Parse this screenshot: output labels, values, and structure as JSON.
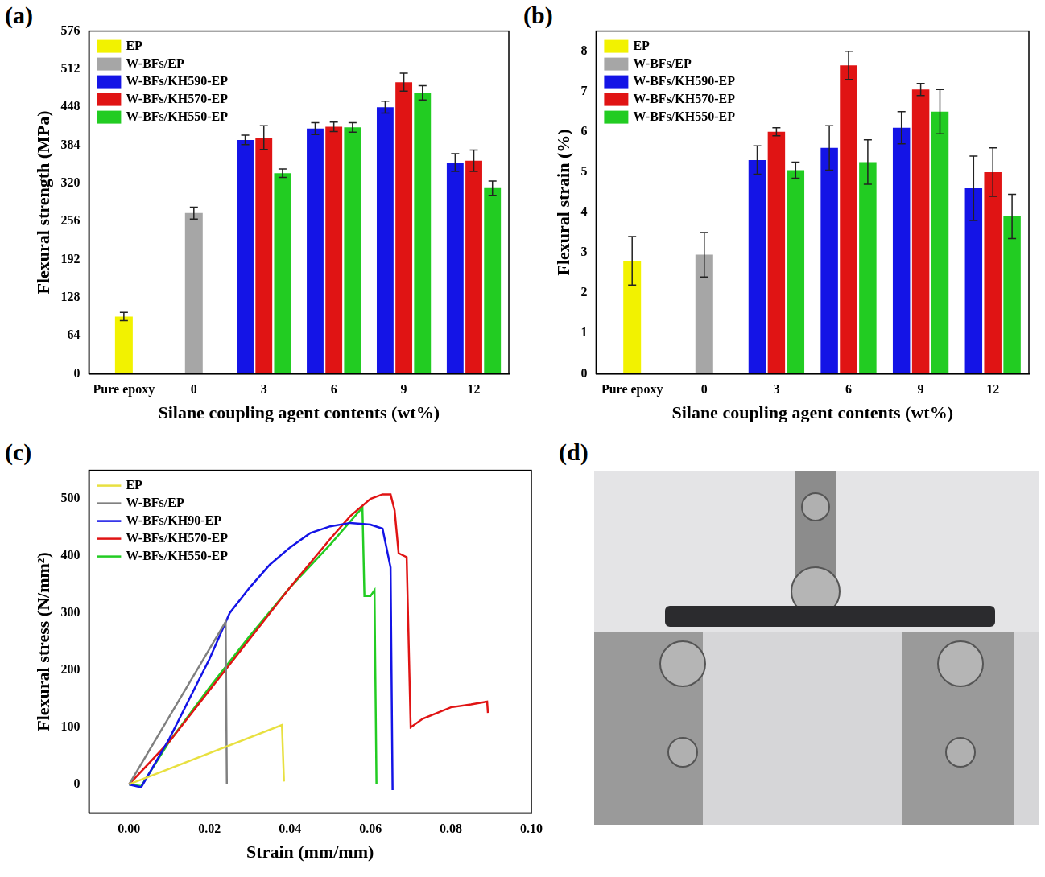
{
  "chart_data": [
    {
      "panel": "(a)",
      "type": "bar",
      "xlabel": "Silane coupling agent contents (wt%)",
      "ylabel": "Flexural strength (MPa)",
      "categories": [
        "Pure epoxy",
        "0",
        "3",
        "6",
        "9",
        "12"
      ],
      "series": [
        {
          "name": "EP",
          "color": "#f2f200",
          "values": [
            96,
            null,
            null,
            null,
            null,
            null
          ],
          "errors": [
            7,
            null,
            null,
            null,
            null,
            null
          ]
        },
        {
          "name": "W-BFs/EP",
          "color": "#a6a6a6",
          "values": [
            null,
            270,
            null,
            null,
            null,
            null
          ],
          "errors": [
            null,
            10,
            null,
            null,
            null,
            null
          ]
        },
        {
          "name": "W-BFs/KH590-EP",
          "color": "#1414e6",
          "values": [
            null,
            null,
            393,
            412,
            448,
            355
          ],
          "errors": [
            null,
            null,
            8,
            10,
            10,
            15
          ]
        },
        {
          "name": "W-BFs/KH570-EP",
          "color": "#e01414",
          "values": [
            null,
            null,
            397,
            415,
            490,
            358
          ],
          "errors": [
            null,
            null,
            20,
            8,
            15,
            18
          ]
        },
        {
          "name": "W-BFs/KH550-EP",
          "color": "#22cc22",
          "values": [
            null,
            null,
            337,
            414,
            472,
            312
          ],
          "errors": [
            null,
            null,
            7,
            8,
            12,
            12
          ]
        }
      ],
      "ylim": [
        0,
        576
      ],
      "yticks": [
        0,
        64,
        128,
        192,
        256,
        320,
        384,
        448,
        512,
        576
      ],
      "grid": false,
      "legend": "upper left"
    },
    {
      "panel": "(b)",
      "type": "bar",
      "xlabel": "Silane coupling agent contents (wt%)",
      "ylabel": "Flexural strain (%)",
      "categories": [
        "Pure epoxy",
        "0",
        "3",
        "6",
        "9",
        "12"
      ],
      "series": [
        {
          "name": "EP",
          "color": "#f2f200",
          "values": [
            2.8,
            null,
            null,
            null,
            null,
            null
          ],
          "errors": [
            0.6,
            null,
            null,
            null,
            null,
            null
          ]
        },
        {
          "name": "W-BFs/EP",
          "color": "#a6a6a6",
          "values": [
            null,
            2.95,
            null,
            null,
            null,
            null
          ],
          "errors": [
            null,
            0.55,
            null,
            null,
            null,
            null
          ]
        },
        {
          "name": "W-BFs/KH590-EP",
          "color": "#1414e6",
          "values": [
            null,
            null,
            5.3,
            5.6,
            6.1,
            4.6
          ],
          "errors": [
            null,
            null,
            0.35,
            0.55,
            0.4,
            0.8
          ]
        },
        {
          "name": "W-BFs/KH570-EP",
          "color": "#e01414",
          "values": [
            null,
            null,
            6.0,
            7.65,
            7.05,
            5.0
          ],
          "errors": [
            null,
            null,
            0.1,
            0.35,
            0.15,
            0.6
          ]
        },
        {
          "name": "W-BFs/KH550-EP",
          "color": "#22cc22",
          "values": [
            null,
            null,
            5.05,
            5.25,
            6.5,
            3.9
          ],
          "errors": [
            null,
            null,
            0.2,
            0.55,
            0.55,
            0.55
          ]
        }
      ],
      "ylim": [
        0,
        8.5
      ],
      "yticks": [
        0,
        1,
        2,
        3,
        4,
        5,
        6,
        7,
        8
      ],
      "grid": false,
      "legend": "upper left"
    },
    {
      "panel": "(c)",
      "type": "line",
      "xlabel": "Strain (mm/mm)",
      "ylabel": "Flexural stress (N/mm²)",
      "series": [
        {
          "name": "EP",
          "color": "#e8e040",
          "x": [
            0,
            0.038,
            0.0385
          ],
          "values": [
            0,
            104,
            5
          ]
        },
        {
          "name": "W-BFs/EP",
          "color": "#808080",
          "x": [
            0,
            0.024,
            0.0243
          ],
          "values": [
            0,
            285,
            0
          ]
        },
        {
          "name": "W-BFs/KH90-EP",
          "color": "#1414e6",
          "x": [
            0,
            0.003,
            0.01,
            0.02,
            0.025,
            0.03,
            0.035,
            0.04,
            0.045,
            0.05,
            0.055,
            0.06,
            0.063,
            0.065,
            0.0655
          ],
          "values": [
            0,
            -5,
            80,
            220,
            300,
            345,
            385,
            415,
            440,
            452,
            458,
            455,
            448,
            380,
            -10
          ]
        },
        {
          "name": "W-BFs/KH570-EP",
          "color": "#e01414",
          "x": [
            0,
            0.01,
            0.02,
            0.03,
            0.04,
            0.05,
            0.055,
            0.06,
            0.063,
            0.065,
            0.066,
            0.067,
            0.069,
            0.07,
            0.073,
            0.08,
            0.085,
            0.089,
            0.0892
          ],
          "values": [
            0,
            75,
            165,
            255,
            345,
            430,
            470,
            500,
            508,
            508,
            480,
            405,
            398,
            100,
            115,
            135,
            140,
            145,
            125
          ]
        },
        {
          "name": "W-BFs/KH550-EP",
          "color": "#22cc22",
          "x": [
            0,
            0.003,
            0.01,
            0.02,
            0.03,
            0.04,
            0.05,
            0.058,
            0.0585,
            0.06,
            0.061,
            0.0615
          ],
          "values": [
            0,
            -3,
            75,
            170,
            260,
            345,
            420,
            485,
            330,
            330,
            340,
            0
          ]
        }
      ],
      "xlim": [
        -0.01,
        0.1
      ],
      "xticks": [
        {
          "value": 0,
          "label": "0.00"
        },
        {
          "value": 0.02,
          "label": "0.02"
        },
        {
          "value": 0.04,
          "label": "0.04"
        },
        {
          "value": 0.06,
          "label": "0.06"
        },
        {
          "value": 0.08,
          "label": "0.08"
        },
        {
          "value": 0.1,
          "label": "0.10"
        }
      ],
      "ylim": [
        -50,
        550
      ],
      "yticks": [
        0,
        100,
        200,
        300,
        400,
        500
      ],
      "grid": false,
      "legend": "upper left"
    }
  ],
  "image_panel": {
    "panel": "(d)"
  }
}
